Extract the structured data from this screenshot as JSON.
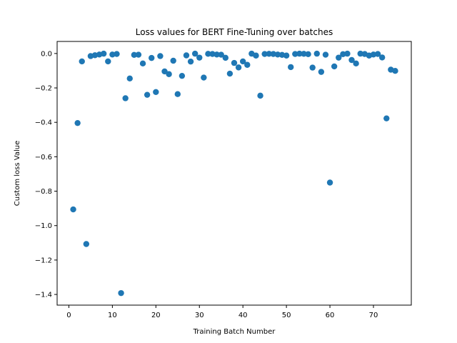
{
  "chart_data": {
    "type": "scatter",
    "title": "Loss values for BERT Fine-Tuning over batches",
    "xlabel": "Training Batch Number",
    "ylabel": "Custom loss Value",
    "xlim": [
      -2.7,
      78.7
    ],
    "ylim": [
      -1.462,
      0.07
    ],
    "xticks": [
      0,
      10,
      20,
      30,
      40,
      50,
      60,
      70
    ],
    "yticks": [
      0.0,
      -0.2,
      -0.4,
      -0.6,
      -0.8,
      -1.0,
      -1.2,
      -1.4
    ],
    "ytick_labels": [
      "0.0",
      "−0.2",
      "−0.4",
      "−0.6",
      "−0.8",
      "−1.0",
      "−1.2",
      "−1.4"
    ],
    "grid": false,
    "marker_color": "#1f77b4",
    "x": [
      1,
      2,
      3,
      4,
      5,
      6,
      7,
      8,
      9,
      10,
      11,
      12,
      13,
      14,
      15,
      16,
      17,
      18,
      19,
      20,
      21,
      22,
      23,
      24,
      25,
      26,
      27,
      28,
      29,
      30,
      31,
      32,
      33,
      34,
      35,
      36,
      37,
      38,
      39,
      40,
      41,
      42,
      43,
      44,
      45,
      46,
      47,
      48,
      49,
      50,
      51,
      52,
      53,
      54,
      55,
      56,
      57,
      58,
      59,
      60,
      61,
      62,
      63,
      64,
      65,
      66,
      67,
      68,
      69,
      70,
      71,
      72,
      73,
      74,
      75
    ],
    "y": [
      -0.906,
      -0.404,
      -0.046,
      -1.107,
      -0.015,
      -0.01,
      -0.006,
      -0.001,
      -0.046,
      -0.006,
      -0.003,
      -1.392,
      -0.26,
      -0.145,
      -0.008,
      -0.007,
      -0.058,
      -0.24,
      -0.026,
      -0.224,
      -0.015,
      -0.104,
      -0.12,
      -0.042,
      -0.236,
      -0.13,
      -0.011,
      -0.047,
      -0.001,
      -0.024,
      -0.14,
      -0.002,
      -0.003,
      -0.006,
      -0.007,
      -0.025,
      -0.117,
      -0.055,
      -0.081,
      -0.046,
      -0.066,
      -0.001,
      -0.012,
      -0.245,
      -0.003,
      -0.002,
      -0.003,
      -0.006,
      -0.008,
      -0.012,
      -0.079,
      -0.003,
      -0.001,
      -0.002,
      -0.004,
      -0.082,
      -0.001,
      -0.107,
      -0.007,
      -0.75,
      -0.075,
      -0.024,
      -0.004,
      -0.001,
      -0.038,
      -0.058,
      -0.001,
      -0.003,
      -0.012,
      -0.006,
      -0.003,
      -0.023,
      -0.377,
      -0.094,
      -0.101
    ]
  }
}
